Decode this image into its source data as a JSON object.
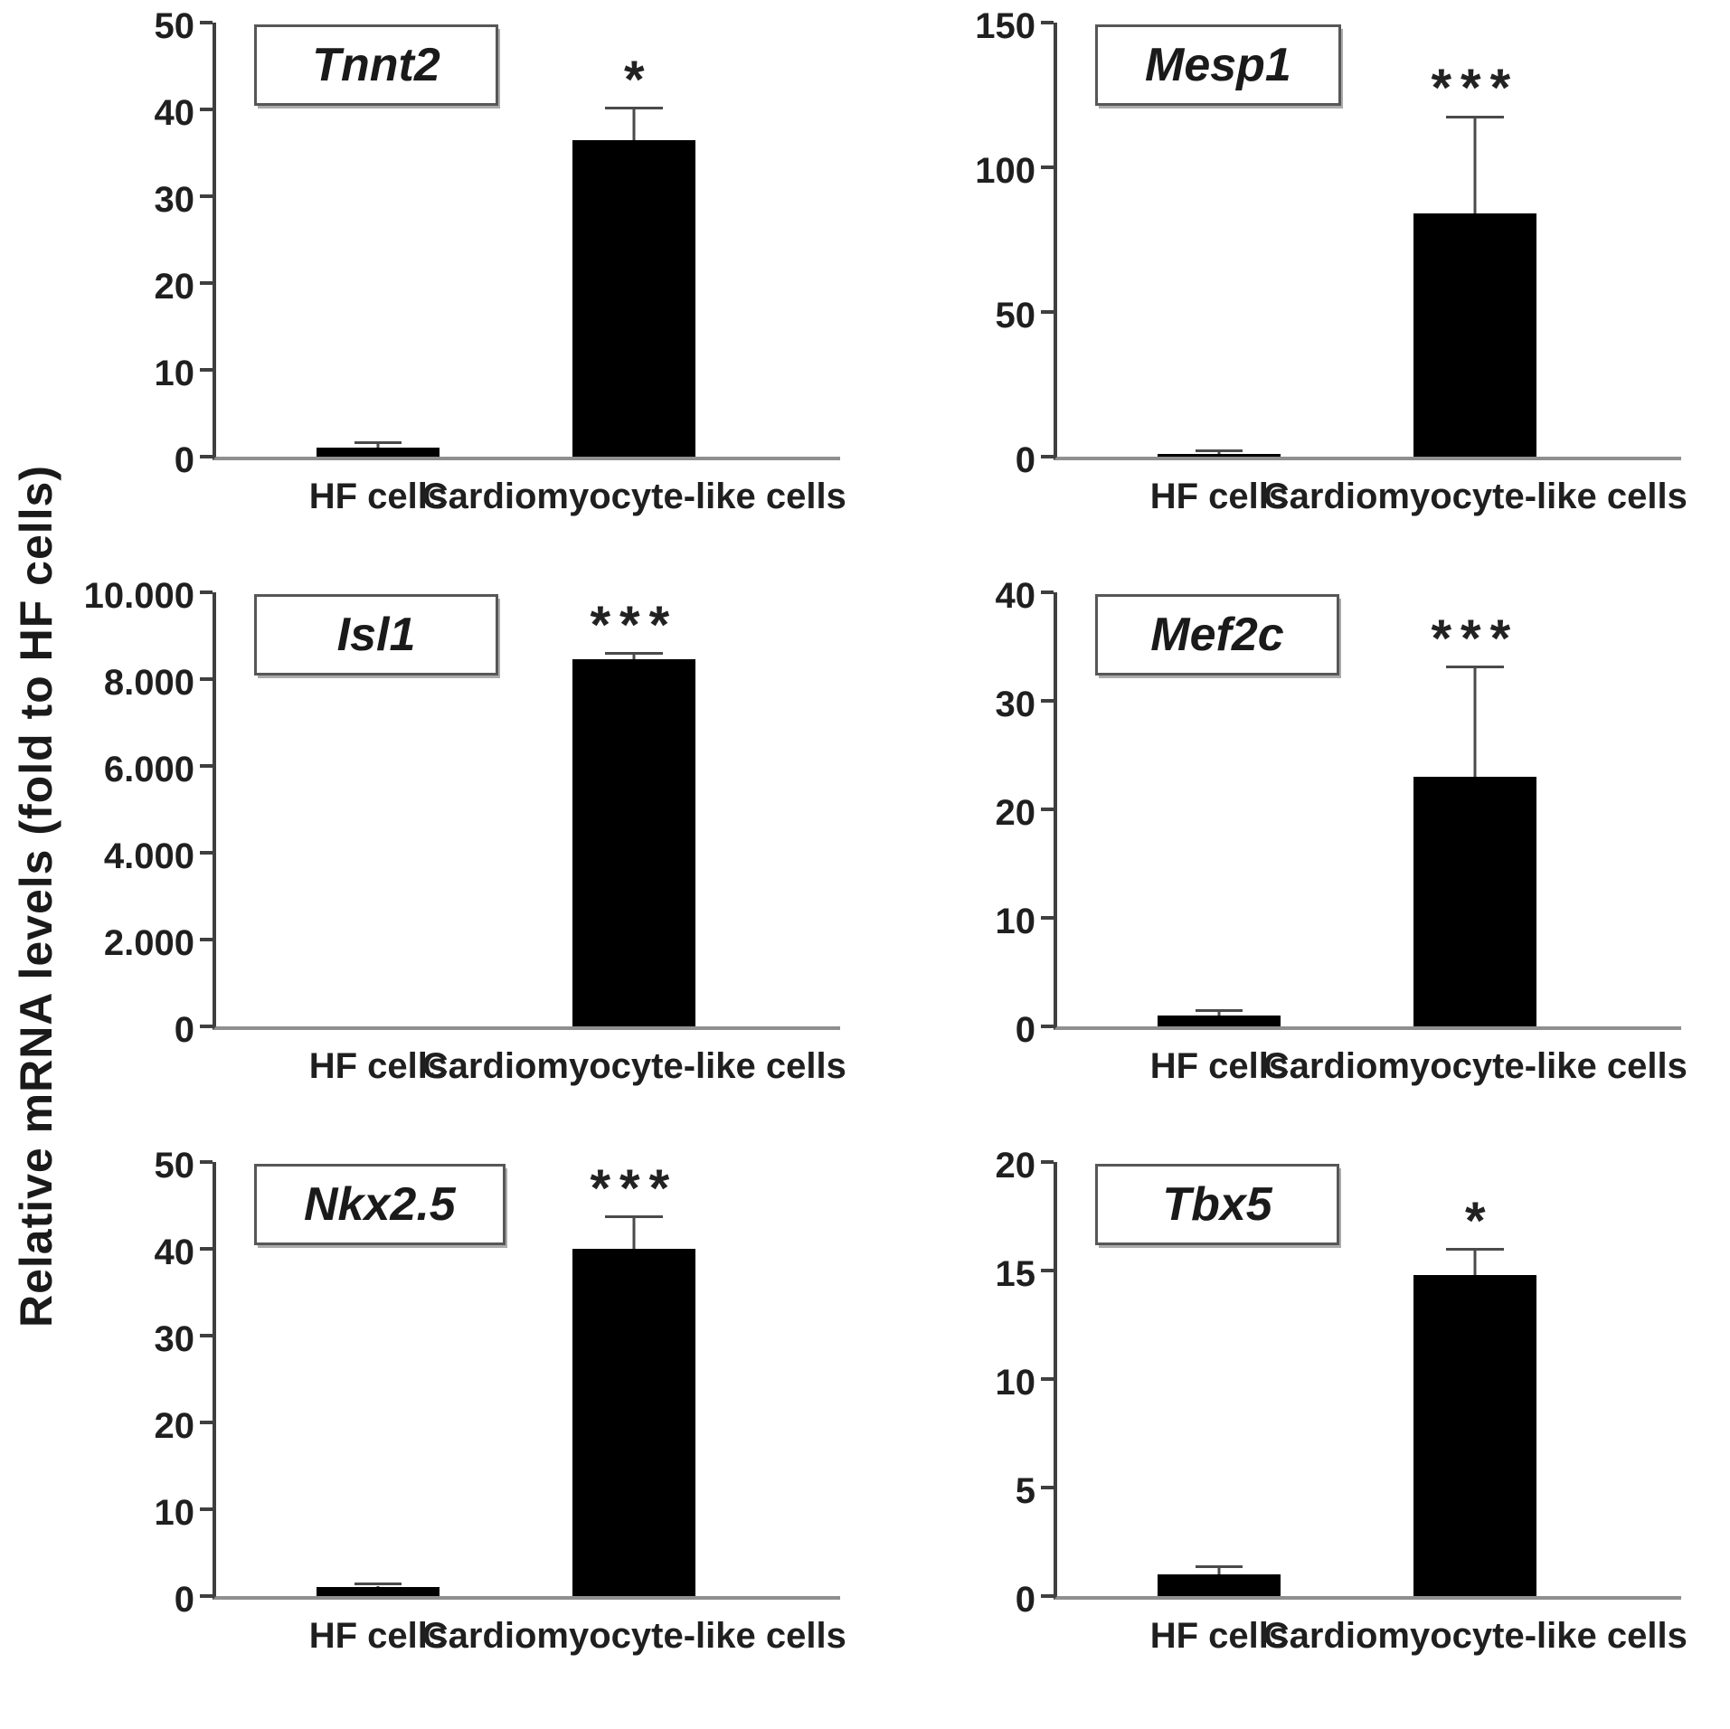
{
  "figure": {
    "y_axis_label": "Relative mRNA levels (fold to HF cells)",
    "bar_color": "#000000",
    "axis_color": "#3f3f3f",
    "baseline_color": "#8f8f8f",
    "error_bar_color": "#4a4a4a",
    "significance_symbols": [
      "*",
      "***"
    ]
  },
  "chart_data": [
    {
      "type": "bar",
      "title": "Tnnt2",
      "categories": [
        "HF cells",
        "Cardiomyocyte-like cells"
      ],
      "values": [
        1,
        36.5
      ],
      "errors_upper": [
        1.5,
        40
      ],
      "significance": "*",
      "significance_on": "Cardiomyocyte-like cells",
      "ylabel": "",
      "xlabel": "",
      "ylim": [
        0,
        50
      ],
      "yticks": [
        0,
        10,
        20,
        30,
        40,
        50
      ],
      "ytick_labels": [
        "0",
        "10",
        "20",
        "30",
        "40",
        "50"
      ],
      "grid": false,
      "legend": false
    },
    {
      "type": "bar",
      "title": "Mesp1",
      "categories": [
        "HF cells",
        "Cardiomyocyte-like cells"
      ],
      "values": [
        0.8,
        84
      ],
      "errors_upper": [
        1.5,
        117
      ],
      "significance": "***",
      "significance_on": "Cardiomyocyte-like cells",
      "ylabel": "",
      "xlabel": "",
      "ylim": [
        0,
        150
      ],
      "yticks": [
        0,
        50,
        100,
        150
      ],
      "ytick_labels": [
        "0",
        "50",
        "100",
        "150"
      ],
      "grid": false,
      "legend": false
    },
    {
      "type": "bar",
      "title": "Isl1",
      "categories": [
        "HF cells",
        "Cardiomyocyte-like cells"
      ],
      "values": [
        1,
        8450
      ],
      "errors_upper": [
        1,
        8560
      ],
      "significance": "***",
      "significance_on": "Cardiomyocyte-like cells",
      "ylabel": "",
      "xlabel": "",
      "ylim": [
        0,
        10000
      ],
      "yticks": [
        0,
        2000,
        4000,
        6000,
        8000,
        10000
      ],
      "ytick_labels": [
        "0",
        "2.000",
        "4.000",
        "6.000",
        "8.000",
        "10.000"
      ],
      "grid": false,
      "legend": false
    },
    {
      "type": "bar",
      "title": "Mef2c",
      "categories": [
        "HF cells",
        "Cardiomyocyte-like cells"
      ],
      "values": [
        1,
        23
      ],
      "errors_upper": [
        1.3,
        33
      ],
      "significance": "***",
      "significance_on": "Cardiomyocyte-like cells",
      "ylabel": "",
      "xlabel": "",
      "ylim": [
        0,
        40
      ],
      "yticks": [
        0,
        10,
        20,
        30,
        40
      ],
      "ytick_labels": [
        "0",
        "10",
        "20",
        "30",
        "40"
      ],
      "grid": false,
      "legend": false
    },
    {
      "type": "bar",
      "title": "Nkx2.5",
      "categories": [
        "HF cells",
        "Cardiomyocyte-like cells"
      ],
      "values": [
        1,
        40
      ],
      "errors_upper": [
        1.2,
        43.5
      ],
      "significance": "***",
      "significance_on": "Cardiomyocyte-like cells",
      "ylabel": "",
      "xlabel": "",
      "ylim": [
        0,
        50
      ],
      "yticks": [
        0,
        10,
        20,
        30,
        40,
        50
      ],
      "ytick_labels": [
        "0",
        "10",
        "20",
        "30",
        "40",
        "50"
      ],
      "grid": false,
      "legend": false
    },
    {
      "type": "bar",
      "title": "Tbx5",
      "categories": [
        "HF cells",
        "Cardiomyocyte-like cells"
      ],
      "values": [
        1,
        14.8
      ],
      "errors_upper": [
        1.3,
        15.9
      ],
      "significance": "*",
      "significance_on": "Cardiomyocyte-like cells",
      "ylabel": "",
      "xlabel": "",
      "ylim": [
        0,
        20
      ],
      "yticks": [
        0,
        5,
        10,
        15,
        20
      ],
      "ytick_labels": [
        "0",
        "5",
        "10",
        "15",
        "20"
      ],
      "grid": false,
      "legend": false
    }
  ]
}
